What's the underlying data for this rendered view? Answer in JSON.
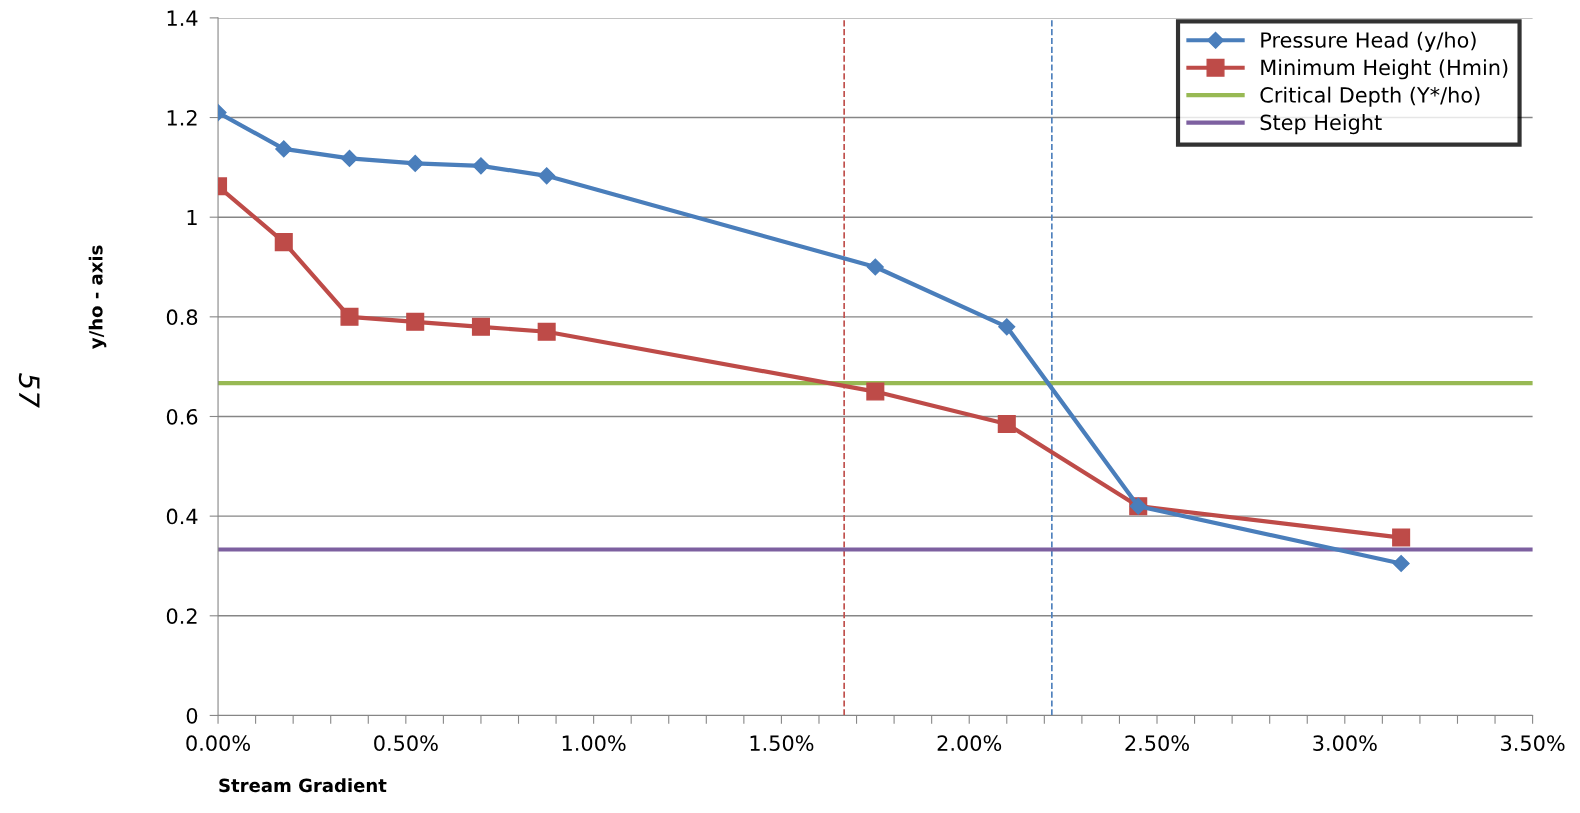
{
  "chart_data": {
    "type": "line",
    "xlabel": "Stream Gradient",
    "ylabel": "y/ho - axis",
    "xlim": [
      0,
      3.5
    ],
    "ylim": [
      0,
      1.4
    ],
    "xticks": [
      {
        "value": 0,
        "label": "0.00%"
      },
      {
        "value": 0.1,
        "label": null
      },
      {
        "value": 0.2,
        "label": null
      },
      {
        "value": 0.3,
        "label": null
      },
      {
        "value": 0.4,
        "label": null
      },
      {
        "value": 0.5,
        "label": "0.50%"
      },
      {
        "value": 0.6,
        "label": null
      },
      {
        "value": 0.7,
        "label": null
      },
      {
        "value": 0.8,
        "label": null
      },
      {
        "value": 0.9,
        "label": null
      },
      {
        "value": 1.0,
        "label": "1.00%"
      },
      {
        "value": 1.1,
        "label": null
      },
      {
        "value": 1.2,
        "label": null
      },
      {
        "value": 1.3,
        "label": null
      },
      {
        "value": 1.4,
        "label": null
      },
      {
        "value": 1.5,
        "label": "1.50%"
      },
      {
        "value": 1.6,
        "label": null
      },
      {
        "value": 1.7,
        "label": null
      },
      {
        "value": 1.8,
        "label": null
      },
      {
        "value": 1.9,
        "label": null
      },
      {
        "value": 2.0,
        "label": "2.00%"
      },
      {
        "value": 2.1,
        "label": null
      },
      {
        "value": 2.2,
        "label": null
      },
      {
        "value": 2.3,
        "label": null
      },
      {
        "value": 2.4,
        "label": null
      },
      {
        "value": 2.5,
        "label": "2.50%"
      },
      {
        "value": 2.6,
        "label": null
      },
      {
        "value": 2.7,
        "label": null
      },
      {
        "value": 2.8,
        "label": null
      },
      {
        "value": 2.9,
        "label": null
      },
      {
        "value": 3.0,
        "label": "3.00%"
      },
      {
        "value": 3.1,
        "label": null
      },
      {
        "value": 3.2,
        "label": null
      },
      {
        "value": 3.3,
        "label": null
      },
      {
        "value": 3.4,
        "label": null
      },
      {
        "value": 3.5,
        "label": "3.50%"
      }
    ],
    "yticks": [
      0,
      0.2,
      0.4,
      0.6,
      0.8,
      1,
      1.2,
      1.4
    ],
    "grid": "y",
    "legend": "top right",
    "series": [
      {
        "name": "Pressure Head (y/ho)",
        "color": "#4a7ebb",
        "marker": "diamond",
        "x": [
          0,
          0.175,
          0.35,
          0.525,
          0.7,
          0.875,
          1.75,
          2.1,
          2.45,
          3.15
        ],
        "values": [
          1.21,
          1.137,
          1.118,
          1.108,
          1.103,
          1.083,
          0.9,
          0.78,
          0.42,
          0.305
        ]
      },
      {
        "name": "Minimum Height (Hmin)",
        "color": "#be4b48",
        "marker": "square",
        "x": [
          0,
          0.175,
          0.35,
          0.525,
          0.7,
          0.875,
          1.75,
          2.1,
          2.45,
          3.15
        ],
        "values": [
          1.062,
          0.95,
          0.8,
          0.79,
          0.78,
          0.77,
          0.65,
          0.585,
          0.42,
          0.357
        ]
      },
      {
        "name": "Critical Depth (Y*/ho)",
        "color": "#98b954",
        "marker": "none",
        "x": [
          0,
          3.5
        ],
        "values": [
          0.667,
          0.667
        ]
      },
      {
        "name": "Step Height",
        "color": "#7d60a0",
        "marker": "none",
        "x": [
          0,
          3.5
        ],
        "values": [
          0.333,
          0.333
        ]
      }
    ],
    "ref_lines": [
      {
        "axis": "x",
        "value": 1.667,
        "color": "#c0504d",
        "line_style": "dashed"
      },
      {
        "axis": "x",
        "value": 2.22,
        "color": "#4f81bd",
        "line_style": "dashed"
      }
    ],
    "annotations": [
      "57"
    ]
  }
}
